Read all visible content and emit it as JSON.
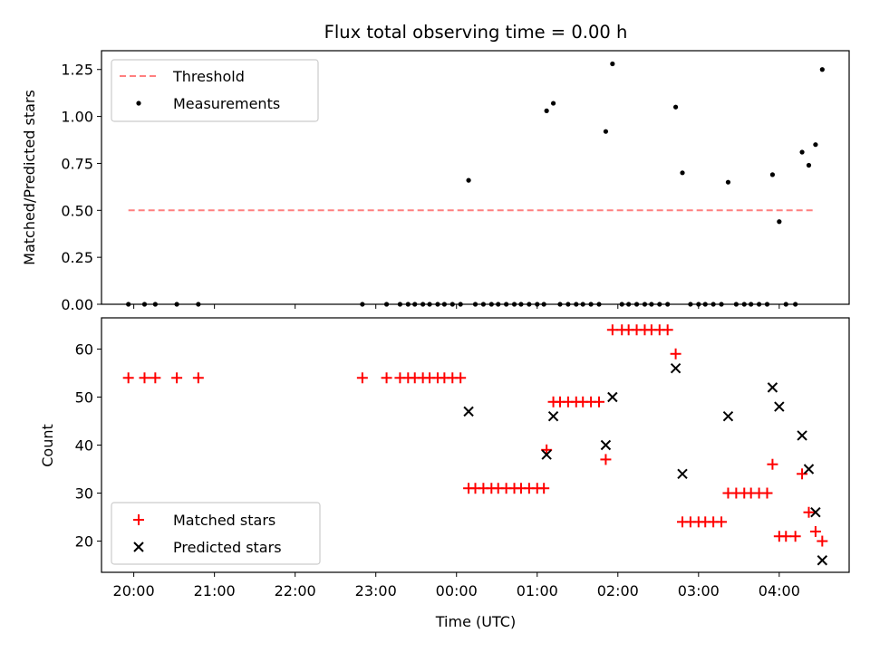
{
  "chart_data": [
    {
      "type": "scatter",
      "title": "Flux total observing time = 0.00 h",
      "xlabel": "",
      "ylabel": "Matched/Predicted stars",
      "xlim": [
        "19:36",
        "04:52"
      ],
      "ylim": [
        0,
        1.35
      ],
      "yticks": [
        "0.00",
        "0.25",
        "0.50",
        "0.75",
        "1.00",
        "1.25"
      ],
      "grid": false,
      "legend": "upper-left",
      "threshold": {
        "name": "Threshold",
        "color": "#ff7f7f",
        "y": 0.5,
        "x_start": "19:56",
        "x_end": "04:27"
      },
      "series": [
        {
          "name": "Measurements",
          "color": "#000000",
          "points": [
            [
              "19:56",
              0
            ],
            [
              "20:08",
              0
            ],
            [
              "20:16",
              0
            ],
            [
              "20:32",
              0
            ],
            [
              "20:48",
              0
            ],
            [
              "22:50",
              0
            ],
            [
              "23:08",
              0
            ],
            [
              "23:18",
              0
            ],
            [
              "23:24",
              0
            ],
            [
              "23:29",
              0
            ],
            [
              "23:35",
              0
            ],
            [
              "23:40",
              0
            ],
            [
              "23:46",
              0
            ],
            [
              "23:51",
              0
            ],
            [
              "23:57",
              0
            ],
            [
              "00:03",
              0
            ],
            [
              "00:09",
              0.66
            ],
            [
              "00:14",
              0
            ],
            [
              "00:20",
              0
            ],
            [
              "00:26",
              0
            ],
            [
              "00:31",
              0
            ],
            [
              "00:37",
              0
            ],
            [
              "00:43",
              0
            ],
            [
              "00:48",
              0
            ],
            [
              "00:54",
              0
            ],
            [
              "01:00",
              0
            ],
            [
              "01:05",
              0
            ],
            [
              "01:07",
              1.03
            ],
            [
              "01:12",
              1.07
            ],
            [
              "01:17",
              0
            ],
            [
              "01:23",
              0
            ],
            [
              "01:29",
              0
            ],
            [
              "01:34",
              0
            ],
            [
              "01:40",
              0
            ],
            [
              "01:46",
              0
            ],
            [
              "01:51",
              0.92
            ],
            [
              "01:56",
              1.28
            ],
            [
              "02:03",
              0
            ],
            [
              "02:08",
              0
            ],
            [
              "02:14",
              0
            ],
            [
              "02:20",
              0
            ],
            [
              "02:25",
              0
            ],
            [
              "02:31",
              0
            ],
            [
              "02:37",
              0
            ],
            [
              "02:43",
              1.05
            ],
            [
              "02:48",
              0.7
            ],
            [
              "02:54",
              0
            ],
            [
              "03:00",
              0
            ],
            [
              "03:05",
              0
            ],
            [
              "03:11",
              0
            ],
            [
              "03:17",
              0
            ],
            [
              "03:22",
              0.65
            ],
            [
              "03:28",
              0
            ],
            [
              "03:34",
              0
            ],
            [
              "03:39",
              0
            ],
            [
              "03:45",
              0
            ],
            [
              "03:51",
              0
            ],
            [
              "03:55",
              0.69
            ],
            [
              "04:00",
              0.44
            ],
            [
              "04:05",
              0
            ],
            [
              "04:12",
              0
            ],
            [
              "04:17",
              0.81
            ],
            [
              "04:22",
              0.74
            ],
            [
              "04:27",
              0.85
            ],
            [
              "04:32",
              1.25
            ]
          ]
        }
      ]
    },
    {
      "type": "scatter",
      "title": "",
      "xlabel": "Time (UTC)",
      "ylabel": "Count",
      "xlim": [
        "19:36",
        "04:52"
      ],
      "ylim": [
        13.5,
        66.5
      ],
      "yticks": [
        "20",
        "30",
        "40",
        "50",
        "60"
      ],
      "xticks": [
        "20:00",
        "21:00",
        "22:00",
        "23:00",
        "00:00",
        "01:00",
        "02:00",
        "03:00",
        "04:00"
      ],
      "grid": false,
      "legend": "lower-left",
      "series": [
        {
          "name": "Matched stars",
          "marker": "plus",
          "color": "#ff0000",
          "points": [
            [
              "19:56",
              54
            ],
            [
              "20:08",
              54
            ],
            [
              "20:16",
              54
            ],
            [
              "20:32",
              54
            ],
            [
              "20:48",
              54
            ],
            [
              "22:50",
              54
            ],
            [
              "23:08",
              54
            ],
            [
              "23:18",
              54
            ],
            [
              "23:24",
              54
            ],
            [
              "23:29",
              54
            ],
            [
              "23:35",
              54
            ],
            [
              "23:40",
              54
            ],
            [
              "23:46",
              54
            ],
            [
              "23:51",
              54
            ],
            [
              "23:57",
              54
            ],
            [
              "00:03",
              54
            ],
            [
              "00:09",
              31
            ],
            [
              "00:14",
              31
            ],
            [
              "00:20",
              31
            ],
            [
              "00:26",
              31
            ],
            [
              "00:31",
              31
            ],
            [
              "00:37",
              31
            ],
            [
              "00:43",
              31
            ],
            [
              "00:48",
              31
            ],
            [
              "00:54",
              31
            ],
            [
              "01:00",
              31
            ],
            [
              "01:05",
              31
            ],
            [
              "01:07",
              39
            ],
            [
              "01:12",
              49
            ],
            [
              "01:17",
              49
            ],
            [
              "01:23",
              49
            ],
            [
              "01:29",
              49
            ],
            [
              "01:34",
              49
            ],
            [
              "01:40",
              49
            ],
            [
              "01:46",
              49
            ],
            [
              "01:51",
              37
            ],
            [
              "01:56",
              64
            ],
            [
              "02:03",
              64
            ],
            [
              "02:08",
              64
            ],
            [
              "02:14",
              64
            ],
            [
              "02:20",
              64
            ],
            [
              "02:25",
              64
            ],
            [
              "02:31",
              64
            ],
            [
              "02:37",
              64
            ],
            [
              "02:43",
              59
            ],
            [
              "02:48",
              24
            ],
            [
              "02:54",
              24
            ],
            [
              "03:00",
              24
            ],
            [
              "03:05",
              24
            ],
            [
              "03:11",
              24
            ],
            [
              "03:17",
              24
            ],
            [
              "03:22",
              30
            ],
            [
              "03:28",
              30
            ],
            [
              "03:34",
              30
            ],
            [
              "03:39",
              30
            ],
            [
              "03:45",
              30
            ],
            [
              "03:51",
              30
            ],
            [
              "03:55",
              36
            ],
            [
              "04:00",
              21
            ],
            [
              "04:05",
              21
            ],
            [
              "04:12",
              21
            ],
            [
              "04:17",
              34
            ],
            [
              "04:22",
              26
            ],
            [
              "04:27",
              22
            ],
            [
              "04:32",
              20
            ]
          ]
        },
        {
          "name": "Predicted stars",
          "marker": "x",
          "color": "#000000",
          "points": [
            [
              "00:09",
              47
            ],
            [
              "01:07",
              38
            ],
            [
              "01:12",
              46
            ],
            [
              "01:51",
              40
            ],
            [
              "01:56",
              50
            ],
            [
              "02:43",
              56
            ],
            [
              "02:48",
              34
            ],
            [
              "03:22",
              46
            ],
            [
              "03:55",
              52
            ],
            [
              "04:00",
              48
            ],
            [
              "04:17",
              42
            ],
            [
              "04:22",
              35
            ],
            [
              "04:27",
              26
            ],
            [
              "04:32",
              16
            ]
          ]
        }
      ]
    }
  ]
}
